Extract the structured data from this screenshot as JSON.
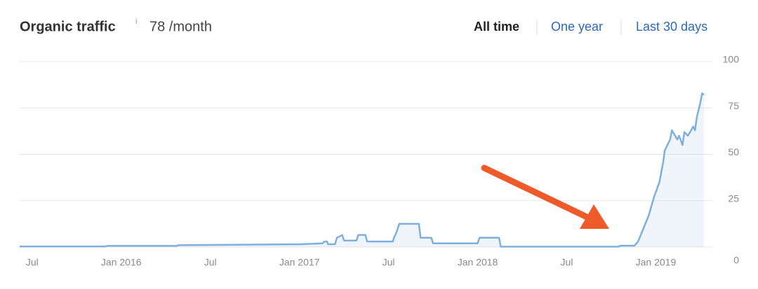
{
  "chart_data": {
    "type": "line",
    "title": "Organic traffic",
    "info": "i",
    "subtitle": "78 /month",
    "tabs": [
      "All time",
      "One year",
      "Last 30 days"
    ],
    "x": [
      2015.43,
      2015.91,
      2015.92,
      2016.31,
      2016.32,
      2017.01,
      2017.13,
      2017.14,
      2017.155,
      2017.16,
      2017.2,
      2017.21,
      2017.24,
      2017.25,
      2017.32,
      2017.33,
      2017.37,
      2017.38,
      2017.525,
      2017.53,
      2017.545,
      2017.56,
      2017.67,
      2017.68,
      2017.74,
      2017.75,
      2018.0,
      2018.01,
      2018.12,
      2018.13,
      2018.79,
      2018.8,
      2018.88,
      2018.9,
      2018.93,
      2018.96,
      2018.99,
      2019.02,
      2019.04,
      2019.05,
      2019.08,
      2019.09,
      2019.12,
      2019.13,
      2019.15,
      2019.16,
      2019.18,
      2019.21,
      2019.22,
      2019.23,
      2019.25,
      2019.26,
      2019.27
    ],
    "series": [
      {
        "name": "Organic traffic",
        "color": "#7fb0dd",
        "values": [
          0.3,
          0.3,
          0.6,
          0.6,
          1,
          1.5,
          2,
          3,
          3,
          1.5,
          1.5,
          5,
          6.5,
          3.5,
          3.5,
          6.5,
          6.5,
          3,
          3,
          5,
          8,
          12.5,
          12.5,
          5,
          5,
          2,
          2,
          5,
          5,
          0.2,
          0.2,
          0.7,
          0.7,
          3,
          10,
          17,
          27,
          35,
          45,
          52,
          58,
          63,
          58,
          60,
          55,
          62,
          60,
          65,
          63,
          70,
          78,
          83,
          82
        ]
      }
    ],
    "xlim": [
      2015.43,
      2019.27
    ],
    "xticks": [
      {
        "value": 2015.5,
        "label": "Jul"
      },
      {
        "value": 2016,
        "label": "Jan 2016"
      },
      {
        "value": 2016.5,
        "label": "Jul"
      },
      {
        "value": 2017,
        "label": "Jan 2017"
      },
      {
        "value": 2017.5,
        "label": "Jul"
      },
      {
        "value": 2018,
        "label": "Jan 2018"
      },
      {
        "value": 2018.5,
        "label": "Jul"
      },
      {
        "value": 2019,
        "label": "Jan 2019"
      }
    ],
    "ylim": [
      0,
      100
    ],
    "yticks": [
      0,
      25,
      50,
      75,
      100
    ],
    "grid": true
  }
}
